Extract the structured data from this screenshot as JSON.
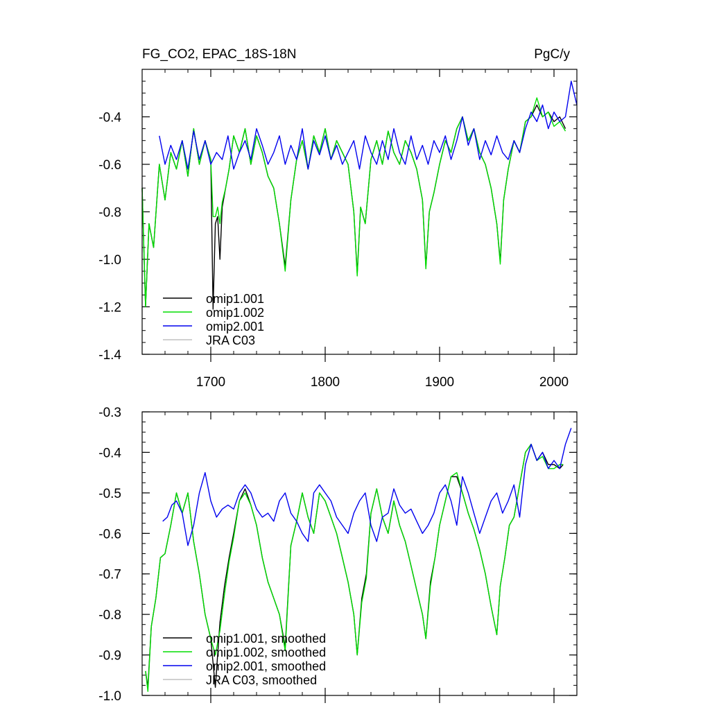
{
  "chart_data": [
    {
      "type": "line",
      "title": "FG_CO2, EPAC_18S-18N",
      "units": "PgC/y",
      "xlabel": "",
      "ylabel": "",
      "xlim": [
        1640,
        2020
      ],
      "ylim": [
        -1.4,
        -0.2
      ],
      "xticks": [
        1700,
        1800,
        1900,
        2000
      ],
      "xtick_labels": [
        "1700",
        "1800",
        "1900",
        "2000"
      ],
      "yticks": [
        -1.4,
        -1.2,
        -1.0,
        -0.8,
        -0.6,
        -0.4
      ],
      "ytick_labels": [
        "-1.4",
        "-1.2",
        "-1.0",
        "-0.8",
        "-0.6",
        "-0.4"
      ],
      "legend_position": "bottom-left",
      "series": [
        {
          "name": "omip1.001",
          "color": "#000000",
          "x": [
            1640,
            1643,
            1646,
            1650,
            1655,
            1660,
            1665,
            1670,
            1675,
            1680,
            1685,
            1690,
            1695,
            1700,
            1702,
            1704,
            1706,
            1708,
            1710,
            1713,
            1716,
            1720,
            1725,
            1730,
            1735,
            1740,
            1745,
            1750,
            1755,
            1760,
            1765,
            1770,
            1775,
            1780,
            1785,
            1790,
            1795,
            1800,
            1805,
            1810,
            1815,
            1820,
            1825,
            1828,
            1831,
            1835,
            1840,
            1845,
            1850,
            1855,
            1860,
            1865,
            1870,
            1875,
            1880,
            1885,
            1888,
            1891,
            1895,
            1900,
            1905,
            1910,
            1915,
            1920,
            1925,
            1930,
            1935,
            1940,
            1945,
            1950,
            1953,
            1956,
            1960,
            1965,
            1970,
            1975,
            1980,
            1985,
            1990,
            1995,
            2000,
            2005,
            2010
          ],
          "y": [
            -0.7,
            -1.2,
            -0.85,
            -0.95,
            -0.6,
            -0.75,
            -0.55,
            -0.62,
            -0.5,
            -0.65,
            -0.45,
            -0.6,
            -0.5,
            -0.58,
            -1.21,
            -0.85,
            -0.82,
            -1.0,
            -0.78,
            -0.7,
            -0.62,
            -0.48,
            -0.55,
            -0.45,
            -0.6,
            -0.48,
            -0.55,
            -0.65,
            -0.7,
            -0.85,
            -1.03,
            -0.75,
            -0.58,
            -0.5,
            -0.62,
            -0.48,
            -0.55,
            -0.45,
            -0.58,
            -0.5,
            -0.55,
            -0.6,
            -0.8,
            -1.06,
            -0.78,
            -0.85,
            -0.58,
            -0.5,
            -0.6,
            -0.46,
            -0.55,
            -0.6,
            -0.5,
            -0.55,
            -0.62,
            -0.75,
            -1.03,
            -0.8,
            -0.72,
            -0.6,
            -0.5,
            -0.55,
            -0.45,
            -0.4,
            -0.5,
            -0.45,
            -0.55,
            -0.6,
            -0.7,
            -0.85,
            -1.01,
            -0.75,
            -0.62,
            -0.5,
            -0.55,
            -0.42,
            -0.4,
            -0.35,
            -0.4,
            -0.38,
            -0.42,
            -0.4,
            -0.45
          ]
        },
        {
          "name": "omip1.002",
          "color": "#00dd00",
          "x": [
            1640,
            1643,
            1646,
            1650,
            1655,
            1660,
            1665,
            1670,
            1675,
            1680,
            1685,
            1690,
            1695,
            1700,
            1702,
            1704,
            1706,
            1708,
            1710,
            1713,
            1716,
            1720,
            1725,
            1730,
            1735,
            1740,
            1745,
            1750,
            1755,
            1760,
            1765,
            1770,
            1775,
            1780,
            1785,
            1790,
            1795,
            1800,
            1805,
            1810,
            1815,
            1820,
            1825,
            1828,
            1831,
            1835,
            1840,
            1845,
            1850,
            1855,
            1860,
            1865,
            1870,
            1875,
            1880,
            1885,
            1888,
            1891,
            1895,
            1900,
            1905,
            1910,
            1915,
            1920,
            1925,
            1930,
            1935,
            1940,
            1945,
            1950,
            1953,
            1956,
            1960,
            1965,
            1970,
            1975,
            1980,
            1985,
            1990,
            1995,
            2000,
            2005,
            2010
          ],
          "y": [
            -0.7,
            -1.2,
            -0.85,
            -0.95,
            -0.6,
            -0.75,
            -0.55,
            -0.62,
            -0.5,
            -0.65,
            -0.45,
            -0.6,
            -0.5,
            -0.58,
            -0.82,
            -0.82,
            -0.78,
            -0.85,
            -0.76,
            -0.7,
            -0.62,
            -0.48,
            -0.55,
            -0.45,
            -0.6,
            -0.48,
            -0.55,
            -0.65,
            -0.7,
            -0.85,
            -1.05,
            -0.75,
            -0.58,
            -0.5,
            -0.62,
            -0.48,
            -0.55,
            -0.45,
            -0.58,
            -0.5,
            -0.55,
            -0.6,
            -0.8,
            -1.07,
            -0.78,
            -0.85,
            -0.58,
            -0.5,
            -0.6,
            -0.46,
            -0.55,
            -0.6,
            -0.5,
            -0.55,
            -0.62,
            -0.75,
            -1.04,
            -0.8,
            -0.72,
            -0.6,
            -0.5,
            -0.55,
            -0.45,
            -0.4,
            -0.5,
            -0.45,
            -0.55,
            -0.6,
            -0.7,
            -0.85,
            -1.02,
            -0.75,
            -0.62,
            -0.5,
            -0.55,
            -0.42,
            -0.4,
            -0.32,
            -0.4,
            -0.38,
            -0.44,
            -0.42,
            -0.46
          ]
        },
        {
          "name": "omip2.001",
          "color": "#0000ee",
          "x": [
            1655,
            1660,
            1665,
            1670,
            1675,
            1680,
            1685,
            1690,
            1695,
            1700,
            1705,
            1710,
            1715,
            1720,
            1725,
            1730,
            1735,
            1740,
            1745,
            1750,
            1755,
            1760,
            1765,
            1770,
            1775,
            1780,
            1785,
            1790,
            1795,
            1800,
            1805,
            1810,
            1815,
            1820,
            1825,
            1830,
            1835,
            1840,
            1845,
            1850,
            1855,
            1860,
            1865,
            1870,
            1875,
            1880,
            1885,
            1890,
            1895,
            1900,
            1905,
            1910,
            1915,
            1920,
            1925,
            1930,
            1935,
            1940,
            1945,
            1950,
            1955,
            1960,
            1965,
            1970,
            1975,
            1980,
            1985,
            1990,
            1995,
            2000,
            2005,
            2010,
            2015,
            2020
          ],
          "y": [
            -0.48,
            -0.6,
            -0.52,
            -0.58,
            -0.5,
            -0.62,
            -0.46,
            -0.58,
            -0.5,
            -0.6,
            -0.55,
            -0.58,
            -0.48,
            -0.62,
            -0.55,
            -0.5,
            -0.58,
            -0.45,
            -0.52,
            -0.6,
            -0.55,
            -0.48,
            -0.6,
            -0.52,
            -0.58,
            -0.45,
            -0.62,
            -0.5,
            -0.56,
            -0.48,
            -0.58,
            -0.52,
            -0.6,
            -0.55,
            -0.5,
            -0.62,
            -0.48,
            -0.55,
            -0.6,
            -0.5,
            -0.58,
            -0.45,
            -0.55,
            -0.6,
            -0.48,
            -0.58,
            -0.52,
            -0.6,
            -0.5,
            -0.55,
            -0.48,
            -0.58,
            -0.5,
            -0.4,
            -0.52,
            -0.45,
            -0.58,
            -0.5,
            -0.56,
            -0.48,
            -0.55,
            -0.58,
            -0.5,
            -0.55,
            -0.45,
            -0.38,
            -0.42,
            -0.35,
            -0.45,
            -0.38,
            -0.42,
            -0.4,
            -0.25,
            -0.35
          ]
        },
        {
          "name": "JRA C03",
          "color": "#c0c0c0",
          "x": [],
          "y": []
        }
      ]
    },
    {
      "type": "line",
      "title": "",
      "units": "",
      "xlabel": "",
      "ylabel": "",
      "xlim": [
        1640,
        2020
      ],
      "ylim": [
        -1.0,
        -0.3
      ],
      "xticks": [
        1700,
        1800,
        1900,
        2000
      ],
      "xtick_labels": [],
      "yticks": [
        -1.0,
        -0.9,
        -0.8,
        -0.7,
        -0.6,
        -0.5,
        -0.4,
        -0.3
      ],
      "ytick_labels": [
        "-1.0",
        "-0.9",
        "-0.8",
        "-0.7",
        "-0.6",
        "-0.5",
        "-0.4",
        "-0.3"
      ],
      "legend_position": "bottom-left",
      "series": [
        {
          "name": "omip1.001, smoothed",
          "color": "#000000",
          "x": [
            1643,
            1645,
            1648,
            1652,
            1656,
            1660,
            1665,
            1670,
            1675,
            1680,
            1685,
            1690,
            1695,
            1700,
            1704,
            1708,
            1712,
            1716,
            1720,
            1725,
            1730,
            1735,
            1740,
            1745,
            1750,
            1755,
            1760,
            1765,
            1770,
            1775,
            1780,
            1785,
            1790,
            1795,
            1800,
            1805,
            1810,
            1815,
            1820,
            1825,
            1828,
            1832,
            1836,
            1840,
            1845,
            1850,
            1855,
            1860,
            1865,
            1870,
            1875,
            1880,
            1885,
            1888,
            1892,
            1896,
            1900,
            1905,
            1910,
            1915,
            1920,
            1925,
            1930,
            1935,
            1940,
            1945,
            1950,
            1953,
            1957,
            1961,
            1965,
            1970,
            1975,
            1980,
            1985,
            1990,
            1995,
            2000,
            2005,
            2008
          ],
          "y": [
            -0.94,
            -0.98,
            -0.83,
            -0.76,
            -0.66,
            -0.65,
            -0.58,
            -0.5,
            -0.55,
            -0.5,
            -0.62,
            -0.7,
            -0.8,
            -0.86,
            -0.98,
            -0.82,
            -0.73,
            -0.66,
            -0.6,
            -0.52,
            -0.49,
            -0.53,
            -0.58,
            -0.66,
            -0.72,
            -0.76,
            -0.8,
            -0.88,
            -0.63,
            -0.57,
            -0.5,
            -0.56,
            -0.6,
            -0.5,
            -0.52,
            -0.56,
            -0.6,
            -0.66,
            -0.72,
            -0.8,
            -0.9,
            -0.76,
            -0.7,
            -0.55,
            -0.49,
            -0.56,
            -0.6,
            -0.52,
            -0.58,
            -0.62,
            -0.68,
            -0.74,
            -0.8,
            -0.86,
            -0.72,
            -0.66,
            -0.58,
            -0.52,
            -0.46,
            -0.46,
            -0.5,
            -0.55,
            -0.59,
            -0.64,
            -0.7,
            -0.78,
            -0.85,
            -0.73,
            -0.66,
            -0.58,
            -0.56,
            -0.48,
            -0.4,
            -0.38,
            -0.42,
            -0.4,
            -0.43,
            -0.43,
            -0.44,
            -0.43
          ]
        },
        {
          "name": "omip1.002, smoothed",
          "color": "#00dd00",
          "x": [
            1643,
            1645,
            1648,
            1652,
            1656,
            1660,
            1665,
            1670,
            1675,
            1680,
            1685,
            1690,
            1695,
            1700,
            1704,
            1708,
            1712,
            1716,
            1720,
            1725,
            1730,
            1735,
            1740,
            1745,
            1750,
            1755,
            1760,
            1765,
            1770,
            1775,
            1780,
            1785,
            1790,
            1795,
            1800,
            1805,
            1810,
            1815,
            1820,
            1825,
            1828,
            1832,
            1836,
            1840,
            1845,
            1850,
            1855,
            1860,
            1865,
            1870,
            1875,
            1880,
            1885,
            1888,
            1892,
            1896,
            1900,
            1905,
            1910,
            1915,
            1920,
            1925,
            1930,
            1935,
            1940,
            1945,
            1950,
            1953,
            1957,
            1961,
            1965,
            1970,
            1975,
            1980,
            1985,
            1990,
            1995,
            2000,
            2005,
            2008
          ],
          "y": [
            -0.94,
            -0.99,
            -0.83,
            -0.76,
            -0.66,
            -0.65,
            -0.58,
            -0.5,
            -0.55,
            -0.5,
            -0.62,
            -0.7,
            -0.8,
            -0.86,
            -0.9,
            -0.84,
            -0.75,
            -0.67,
            -0.61,
            -0.52,
            -0.5,
            -0.53,
            -0.58,
            -0.66,
            -0.72,
            -0.76,
            -0.8,
            -0.89,
            -0.63,
            -0.57,
            -0.5,
            -0.56,
            -0.6,
            -0.5,
            -0.52,
            -0.56,
            -0.6,
            -0.66,
            -0.72,
            -0.8,
            -0.9,
            -0.77,
            -0.71,
            -0.55,
            -0.49,
            -0.56,
            -0.6,
            -0.52,
            -0.58,
            -0.62,
            -0.68,
            -0.74,
            -0.8,
            -0.86,
            -0.73,
            -0.66,
            -0.58,
            -0.52,
            -0.46,
            -0.45,
            -0.5,
            -0.55,
            -0.59,
            -0.64,
            -0.7,
            -0.78,
            -0.85,
            -0.73,
            -0.66,
            -0.58,
            -0.56,
            -0.48,
            -0.4,
            -0.38,
            -0.42,
            -0.41,
            -0.44,
            -0.44,
            -0.43,
            -0.43
          ]
        },
        {
          "name": "omip2.001, smoothed",
          "color": "#0000ee",
          "x": [
            1658,
            1662,
            1666,
            1670,
            1675,
            1680,
            1685,
            1690,
            1695,
            1700,
            1705,
            1710,
            1715,
            1720,
            1725,
            1730,
            1735,
            1740,
            1745,
            1750,
            1755,
            1760,
            1765,
            1770,
            1775,
            1780,
            1785,
            1790,
            1795,
            1800,
            1805,
            1810,
            1815,
            1820,
            1825,
            1830,
            1835,
            1840,
            1845,
            1850,
            1855,
            1860,
            1865,
            1870,
            1875,
            1880,
            1885,
            1890,
            1895,
            1900,
            1905,
            1910,
            1915,
            1920,
            1925,
            1930,
            1935,
            1940,
            1945,
            1950,
            1955,
            1960,
            1965,
            1970,
            1975,
            1980,
            1985,
            1990,
            1995,
            2000,
            2005,
            2010,
            2015
          ],
          "y": [
            -0.57,
            -0.56,
            -0.53,
            -0.52,
            -0.55,
            -0.63,
            -0.58,
            -0.5,
            -0.45,
            -0.52,
            -0.56,
            -0.54,
            -0.53,
            -0.54,
            -0.5,
            -0.48,
            -0.5,
            -0.54,
            -0.56,
            -0.55,
            -0.57,
            -0.52,
            -0.5,
            -0.55,
            -0.57,
            -0.6,
            -0.62,
            -0.5,
            -0.48,
            -0.5,
            -0.52,
            -0.56,
            -0.58,
            -0.6,
            -0.55,
            -0.52,
            -0.5,
            -0.58,
            -0.62,
            -0.56,
            -0.55,
            -0.49,
            -0.53,
            -0.55,
            -0.54,
            -0.57,
            -0.6,
            -0.58,
            -0.55,
            -0.5,
            -0.48,
            -0.52,
            -0.58,
            -0.46,
            -0.5,
            -0.55,
            -0.6,
            -0.56,
            -0.52,
            -0.5,
            -0.55,
            -0.52,
            -0.48,
            -0.56,
            -0.43,
            -0.38,
            -0.42,
            -0.4,
            -0.44,
            -0.42,
            -0.44,
            -0.38,
            -0.34
          ]
        },
        {
          "name": "JRA C03, smoothed",
          "color": "#c0c0c0",
          "x": [],
          "y": []
        }
      ]
    }
  ]
}
